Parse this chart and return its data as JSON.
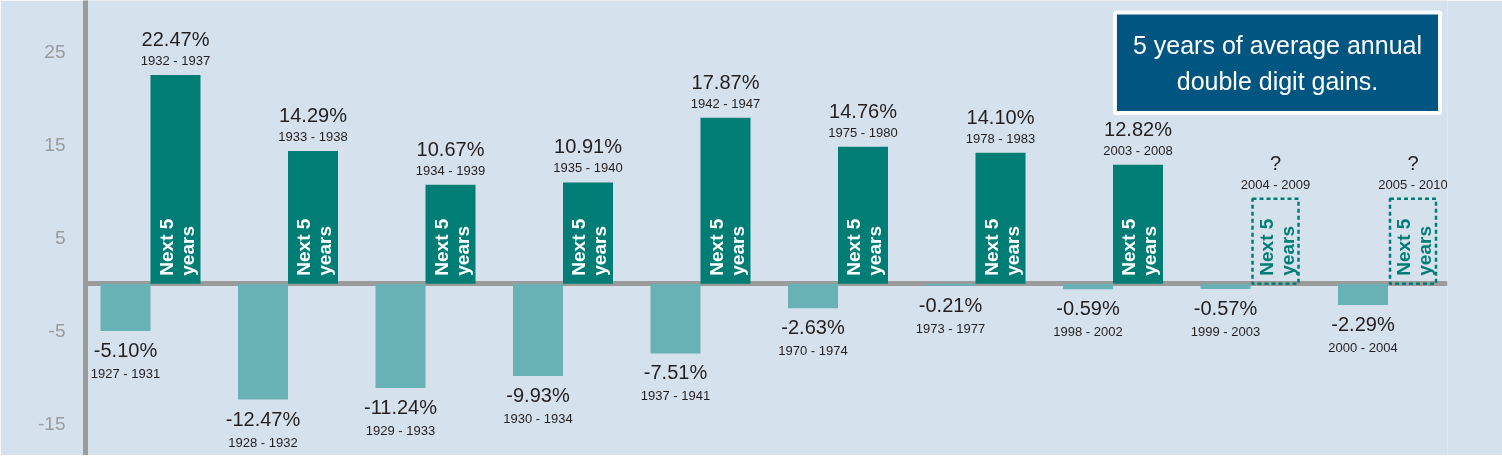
{
  "chart_data": {
    "type": "bar",
    "categories": [
      "1927 - 1931",
      "1932 - 1937",
      "1928 - 1932",
      "1933 - 1938",
      "1929 - 1933",
      "1934 - 1939",
      "1930 - 1934",
      "1935 - 1940",
      "1937 - 1941",
      "1942 - 1947",
      "1970 - 1974",
      "1975 - 1980",
      "1973 - 1977",
      "1978 - 1983",
      "1998 - 2002",
      "2003 - 2008",
      "1999 - 2003",
      "2004 - 2009",
      "2000 - 2004",
      "2005 - 2010"
    ],
    "series": [
      {
        "color": "#68b1b4",
        "values": [
          -5.1,
          null,
          -12.47,
          null,
          -11.24,
          null,
          -9.93,
          null,
          -7.51,
          null,
          -2.63,
          null,
          -0.21,
          null,
          -0.59,
          null,
          -0.57,
          null,
          -2.29,
          null
        ],
        "value_labels": [
          "-5.10%",
          null,
          "-12.47%",
          null,
          "-11.24%",
          null,
          "-9.93%",
          null,
          "-7.51%",
          null,
          "-2.63%",
          null,
          "-0.21%",
          null,
          "-0.59%",
          null,
          "-0.57%",
          null,
          "-2.29%",
          null
        ]
      },
      {
        "name": "Next 5 years",
        "color": "#007d74",
        "values": [
          null,
          22.47,
          null,
          14.29,
          null,
          10.67,
          null,
          10.91,
          null,
          17.87,
          null,
          14.76,
          null,
          14.1,
          null,
          12.82,
          null,
          null,
          null,
          null
        ],
        "value_labels": [
          null,
          "22.47%",
          null,
          "14.29%",
          null,
          "10.67%",
          null,
          "10.91%",
          null,
          "17.87%",
          null,
          "14.76%",
          null,
          "14.10%",
          null,
          "12.82%",
          null,
          "?",
          null,
          "?"
        ]
      }
    ],
    "ylim": [
      -18.5,
      30.5
    ],
    "yticks": [
      -15,
      -5,
      5,
      15,
      25
    ],
    "grid": false,
    "annotations": [
      "5 years of average annual double digit gains."
    ]
  }
}
